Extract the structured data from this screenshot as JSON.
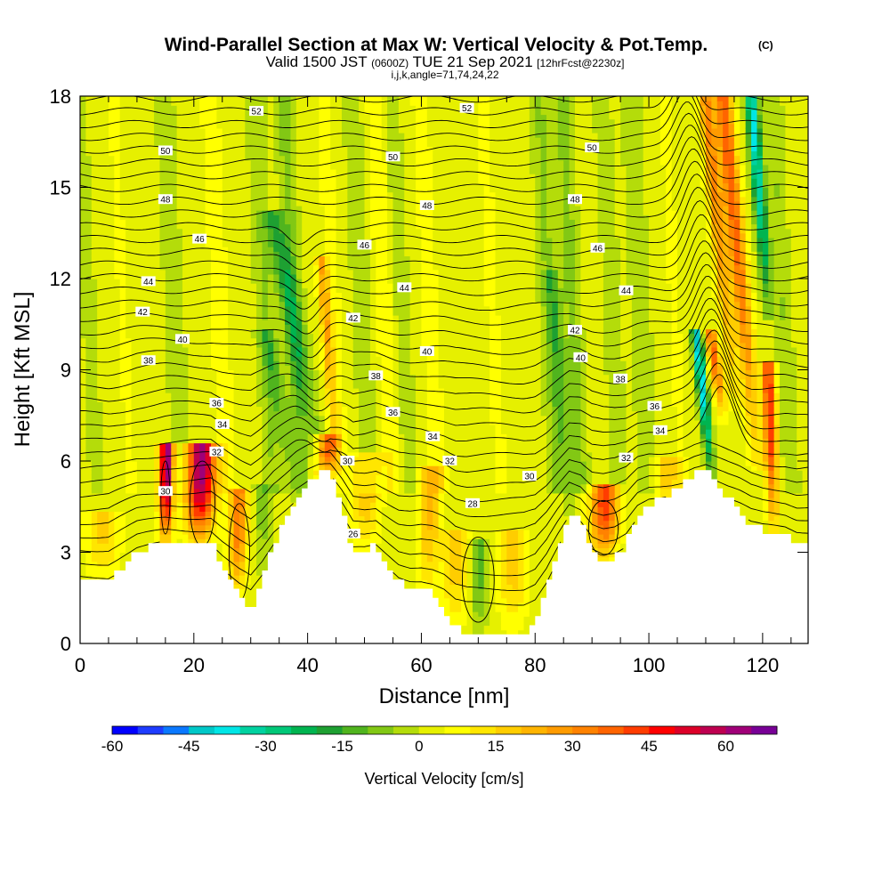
{
  "title": {
    "main": "Wind-Parallel Section at Max W: Vertical Velocity & Pot.Temp.",
    "copyright": "(C)",
    "valid_prefix": "Valid 1500 JST",
    "valid_utc": "(0600Z)",
    "valid_date": "TUE 21 Sep 2021",
    "forecast": "[12hrFcst@2230z]",
    "params": "i,j,k,angle=71,74,24,22"
  },
  "chart_data": {
    "type": "heatmap",
    "xlabel": "Distance [nm]",
    "ylabel": "Height [Kft MSL]",
    "xlim": [
      0,
      128
    ],
    "ylim": [
      0,
      18
    ],
    "x_ticks": [
      0,
      20,
      40,
      60,
      80,
      100,
      120
    ],
    "y_ticks": [
      0,
      3,
      6,
      9,
      12,
      15,
      18
    ],
    "x_tick_labels": [
      "0",
      "20",
      "40",
      "60",
      "80",
      "100",
      "120"
    ],
    "y_tick_labels": [
      "0",
      "3",
      "6",
      "9",
      "12",
      "15",
      "18"
    ],
    "x_minor_step": 5,
    "colorbar": {
      "title": "Vertical Velocity [cm/s]",
      "min": -60,
      "max": 70,
      "step": 5,
      "tick_values": [
        -60,
        -45,
        -30,
        -15,
        0,
        15,
        30,
        45,
        60
      ],
      "tick_labels": [
        "-60",
        "-45",
        "-30",
        "-15",
        "0",
        "15",
        "30",
        "45",
        "60"
      ],
      "colors": [
        "#0000ff",
        "#1e3cff",
        "#0a78ff",
        "#00c8c8",
        "#00e6e6",
        "#00d2a0",
        "#00c878",
        "#00b450",
        "#1ea032",
        "#50b41e",
        "#82c814",
        "#b4dc0a",
        "#e6f000",
        "#ffff00",
        "#ffe600",
        "#ffcd00",
        "#ffb400",
        "#ff9b00",
        "#ff8200",
        "#ff6400",
        "#ff3c00",
        "#ff0000",
        "#dc0028",
        "#be0050",
        "#a00078",
        "#780096"
      ]
    },
    "terrain_kft": [
      [
        0,
        2.0
      ],
      [
        5,
        2.0
      ],
      [
        10,
        3.0
      ],
      [
        15,
        3.4
      ],
      [
        20,
        3.4
      ],
      [
        23,
        3.4
      ],
      [
        25,
        2.6
      ],
      [
        28,
        1.6
      ],
      [
        30,
        1.1
      ],
      [
        32,
        2.0
      ],
      [
        34,
        3.2
      ],
      [
        36,
        4.0
      ],
      [
        38,
        4.8
      ],
      [
        40,
        5.3
      ],
      [
        42,
        5.6
      ],
      [
        44,
        5.6
      ],
      [
        46,
        4.4
      ],
      [
        48,
        3.0
      ],
      [
        50,
        3.0
      ],
      [
        52,
        3.2
      ],
      [
        54,
        2.6
      ],
      [
        56,
        2.0
      ],
      [
        58,
        1.8
      ],
      [
        60,
        1.8
      ],
      [
        62,
        1.6
      ],
      [
        64,
        1.2
      ],
      [
        66,
        0.5
      ],
      [
        68,
        0.3
      ],
      [
        70,
        0.3
      ],
      [
        72,
        0.3
      ],
      [
        74,
        0.3
      ],
      [
        76,
        0.3
      ],
      [
        78,
        0.3
      ],
      [
        80,
        0.6
      ],
      [
        82,
        1.6
      ],
      [
        84,
        3.0
      ],
      [
        86,
        4.3
      ],
      [
        88,
        4.0
      ],
      [
        90,
        3.0
      ],
      [
        92,
        2.7
      ],
      [
        94,
        2.8
      ],
      [
        96,
        3.2
      ],
      [
        98,
        4.2
      ],
      [
        100,
        4.6
      ],
      [
        102,
        4.7
      ],
      [
        104,
        4.9
      ],
      [
        106,
        5.2
      ],
      [
        108,
        5.6
      ],
      [
        110,
        5.8
      ],
      [
        112,
        5.3
      ],
      [
        114,
        4.8
      ],
      [
        116,
        4.4
      ],
      [
        118,
        3.9
      ],
      [
        120,
        3.7
      ],
      [
        124,
        3.6
      ],
      [
        126,
        3.3
      ],
      [
        128,
        3.3
      ]
    ],
    "theta_contours_c": [
      {
        "level": "26",
        "at": [
          48,
          3.6
        ]
      },
      {
        "level": "28",
        "at": [
          69,
          4.6
        ]
      },
      {
        "level": "30",
        "at": [
          15,
          5.0
        ]
      },
      {
        "level": "30",
        "at": [
          47,
          6.0
        ]
      },
      {
        "level": "30",
        "at": [
          79,
          5.5
        ]
      },
      {
        "level": "32",
        "at": [
          24,
          6.3
        ]
      },
      {
        "level": "32",
        "at": [
          65,
          6.0
        ]
      },
      {
        "level": "32",
        "at": [
          96,
          6.1
        ]
      },
      {
        "level": "34",
        "at": [
          25,
          7.2
        ]
      },
      {
        "level": "34",
        "at": [
          62,
          6.8
        ]
      },
      {
        "level": "34",
        "at": [
          102,
          7.0
        ]
      },
      {
        "level": "36",
        "at": [
          24,
          7.9
        ]
      },
      {
        "level": "36",
        "at": [
          55,
          7.6
        ]
      },
      {
        "level": "36",
        "at": [
          101,
          7.8
        ]
      },
      {
        "level": "38",
        "at": [
          12,
          9.3
        ]
      },
      {
        "level": "38",
        "at": [
          52,
          8.8
        ]
      },
      {
        "level": "38",
        "at": [
          95,
          8.7
        ]
      },
      {
        "level": "40",
        "at": [
          18,
          10.0
        ]
      },
      {
        "level": "40",
        "at": [
          61,
          9.6
        ]
      },
      {
        "level": "40",
        "at": [
          88,
          9.4
        ]
      },
      {
        "level": "42",
        "at": [
          11,
          10.9
        ]
      },
      {
        "level": "42",
        "at": [
          48,
          10.7
        ]
      },
      {
        "level": "42",
        "at": [
          87,
          10.3
        ]
      },
      {
        "level": "44",
        "at": [
          12,
          11.9
        ]
      },
      {
        "level": "44",
        "at": [
          57,
          11.7
        ]
      },
      {
        "level": "44",
        "at": [
          96,
          11.6
        ]
      },
      {
        "level": "46",
        "at": [
          21,
          13.3
        ]
      },
      {
        "level": "46",
        "at": [
          50,
          13.1
        ]
      },
      {
        "level": "46",
        "at": [
          91,
          13.0
        ]
      },
      {
        "level": "48",
        "at": [
          15,
          14.6
        ]
      },
      {
        "level": "48",
        "at": [
          61,
          14.4
        ]
      },
      {
        "level": "48",
        "at": [
          87,
          14.6
        ]
      },
      {
        "level": "50",
        "at": [
          15,
          16.2
        ]
      },
      {
        "level": "50",
        "at": [
          55,
          16.0
        ]
      },
      {
        "level": "50",
        "at": [
          90,
          16.3
        ]
      },
      {
        "level": "52",
        "at": [
          31,
          17.5
        ]
      },
      {
        "level": "52",
        "at": [
          68,
          17.6
        ]
      }
    ],
    "updrafts": [
      {
        "x": 15,
        "base": 3.4,
        "top": 6.3,
        "lean": 0.2,
        "w": 1.2,
        "v": 65
      },
      {
        "x": 21,
        "base": 3.4,
        "top": 6.3,
        "lean": 0.3,
        "w": 2.6,
        "v": 62
      },
      {
        "x": 27.5,
        "base": 1.6,
        "top": 4.8,
        "lean": 0.4,
        "w": 1.6,
        "v": 33
      },
      {
        "x": 4,
        "base": 2.0,
        "top": 4.0,
        "lean": 0.0,
        "w": 3.0,
        "v": 14
      },
      {
        "x": 43,
        "base": 5.4,
        "top": 6.6,
        "lean": 0.4,
        "w": 1.8,
        "v": 35
      },
      {
        "x": 45,
        "base": 6.0,
        "top": 12.5,
        "lean": -2.5,
        "w": 1.0,
        "v": 22
      },
      {
        "x": 50,
        "base": 3.0,
        "top": 6.0,
        "lean": 0.6,
        "w": 2.5,
        "v": 18
      },
      {
        "x": 61,
        "base": 1.6,
        "top": 5.5,
        "lean": 0.6,
        "w": 2.0,
        "v": 20
      },
      {
        "x": 66,
        "base": 0.4,
        "top": 3.5,
        "lean": 0.2,
        "w": 2.4,
        "v": 16
      },
      {
        "x": 76,
        "base": 0.4,
        "top": 3.5,
        "lean": 0.2,
        "w": 2.5,
        "v": 16
      },
      {
        "x": 92,
        "base": 2.8,
        "top": 5.0,
        "lean": 0.3,
        "w": 2.4,
        "v": 42
      },
      {
        "x": 103,
        "base": 4.6,
        "top": 5.8,
        "lean": 0.2,
        "w": 2.2,
        "v": 18
      },
      {
        "x": 122,
        "base": 3.7,
        "top": 9.0,
        "lean": -1.0,
        "w": 1.1,
        "v": 45
      },
      {
        "x": 119,
        "base": 6.0,
        "top": 18.0,
        "lean": -6.0,
        "w": 1.5,
        "v": 38
      },
      {
        "x": 115,
        "base": 8.0,
        "top": 18.0,
        "lean": -5.0,
        "w": 1.3,
        "v": 30
      },
      {
        "x": 113,
        "base": 7.5,
        "top": 10.0,
        "lean": -2.0,
        "w": 1.0,
        "v": 35
      }
    ],
    "downdrafts": [
      {
        "x": 42,
        "base": 6.0,
        "top": 14.0,
        "lean": -8.0,
        "w": 1.8,
        "v": -18
      },
      {
        "x": 38,
        "base": 5.0,
        "top": 10.0,
        "lean": -5.0,
        "w": 1.6,
        "v": -12
      },
      {
        "x": 70,
        "base": 0.5,
        "top": 3.2,
        "lean": 0.1,
        "w": 1.6,
        "v": -16
      },
      {
        "x": 111,
        "base": 5.5,
        "top": 10.0,
        "lean": -2.5,
        "w": 0.9,
        "v": -45
      },
      {
        "x": 121,
        "base": 11.0,
        "top": 18.0,
        "lean": -3.0,
        "w": 1.1,
        "v": -40
      },
      {
        "x": 32,
        "base": 2.5,
        "top": 5.0,
        "lean": 0.3,
        "w": 1.5,
        "v": -10
      },
      {
        "x": 86,
        "base": 4.5,
        "top": 12.0,
        "lean": -3.0,
        "w": 1.3,
        "v": -12
      }
    ],
    "streaks": [
      {
        "x": 3,
        "w": 1.5,
        "v": -4
      },
      {
        "x": 9,
        "w": 1.4,
        "v": 4
      },
      {
        "x": 18,
        "w": 1.6,
        "v": -6
      },
      {
        "x": 26,
        "w": 1.8,
        "v": 6
      },
      {
        "x": 34,
        "w": 1.6,
        "v": -7
      },
      {
        "x": 39,
        "w": 1.5,
        "v": -9
      },
      {
        "x": 46,
        "w": 1.6,
        "v": 5
      },
      {
        "x": 51,
        "w": 1.5,
        "v": -7
      },
      {
        "x": 55,
        "w": 1.5,
        "v": 8
      },
      {
        "x": 58,
        "w": 1.4,
        "v": -6
      },
      {
        "x": 63,
        "w": 1.6,
        "v": 6
      },
      {
        "x": 74,
        "w": 1.8,
        "v": 4
      },
      {
        "x": 84,
        "w": 1.6,
        "v": -8
      },
      {
        "x": 88,
        "w": 1.5,
        "v": -9
      },
      {
        "x": 95,
        "w": 1.6,
        "v": -5
      },
      {
        "x": 100,
        "w": 1.7,
        "v": -6
      },
      {
        "x": 106,
        "w": 1.5,
        "v": 4
      },
      {
        "x": 125,
        "w": 1.5,
        "v": -7
      }
    ]
  }
}
